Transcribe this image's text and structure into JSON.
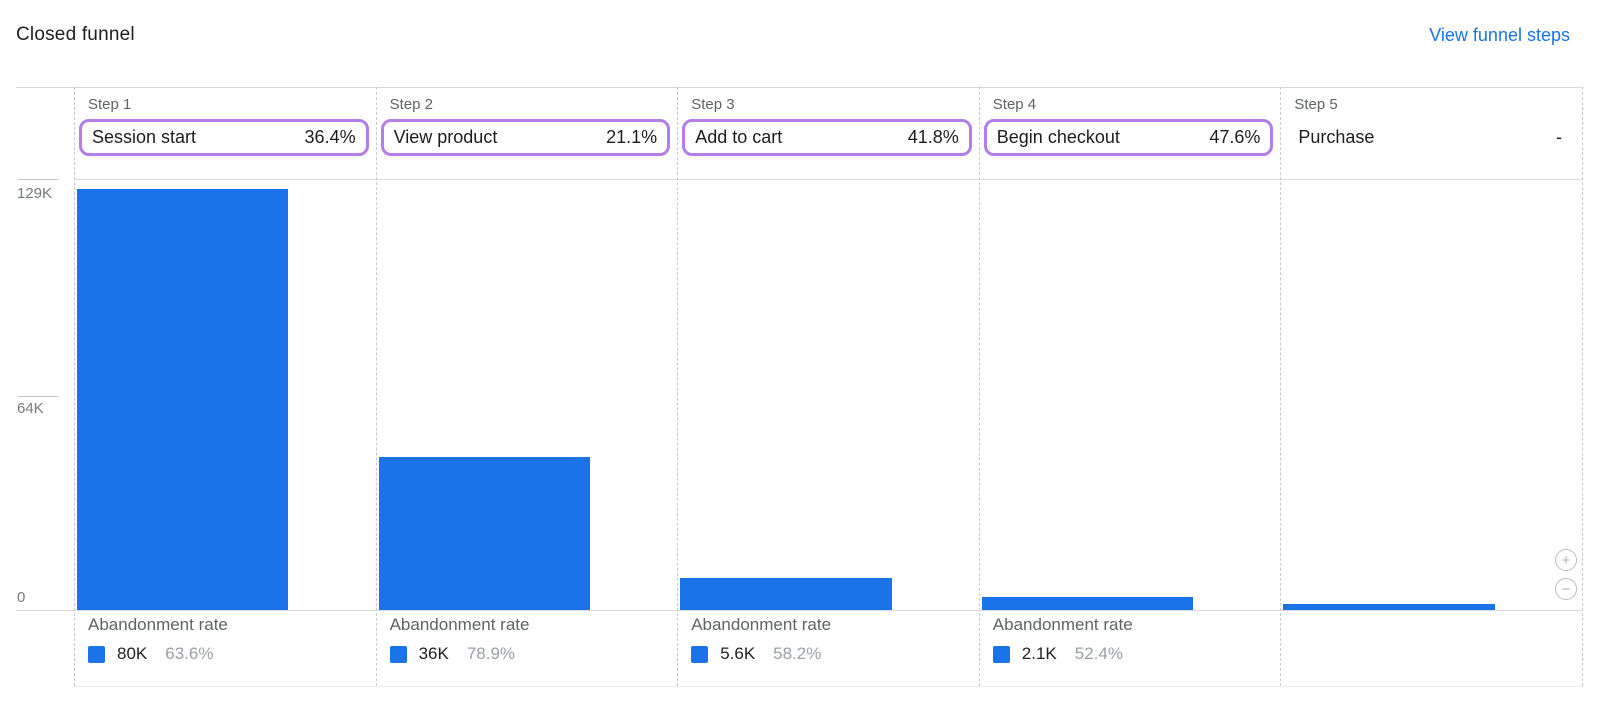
{
  "header": {
    "title": "Closed funnel",
    "view_link": "View funnel steps"
  },
  "chart_data": {
    "type": "bar",
    "title": "Closed funnel",
    "ylim": [
      0,
      129000
    ],
    "axis_max_k": 129,
    "grid": "horizontal-ticks-only",
    "bar_color": "#1a73e8",
    "highlight_color": "#b47de9",
    "yticks": [
      {
        "label": "129K",
        "value": 129000
      },
      {
        "label": "64K",
        "value": 64000
      },
      {
        "label": "0",
        "value": 0
      }
    ],
    "steps": [
      {
        "step_label": "Step 1",
        "name": "Session start",
        "completion_rate": "36.4%",
        "value_k": 125.9,
        "highlighted": true,
        "abandonment": {
          "label": "Abandonment rate",
          "count": "80K",
          "rate": "63.6%"
        }
      },
      {
        "step_label": "Step 2",
        "name": "View product",
        "completion_rate": "21.1%",
        "value_k": 45.8,
        "highlighted": true,
        "abandonment": {
          "label": "Abandonment rate",
          "count": "36K",
          "rate": "78.9%"
        }
      },
      {
        "step_label": "Step 3",
        "name": "Add to cart",
        "completion_rate": "41.8%",
        "value_k": 9.6,
        "highlighted": true,
        "abandonment": {
          "label": "Abandonment rate",
          "count": "5.6K",
          "rate": "58.2%"
        }
      },
      {
        "step_label": "Step 4",
        "name": "Begin checkout",
        "completion_rate": "47.6%",
        "value_k": 4.0,
        "highlighted": true,
        "abandonment": {
          "label": "Abandonment rate",
          "count": "2.1K",
          "rate": "52.4%"
        }
      },
      {
        "step_label": "Step 5",
        "name": "Purchase",
        "completion_rate": "-",
        "value_k": 1.9,
        "highlighted": false
      }
    ]
  },
  "zoom_controls": {
    "zoom_in": "+",
    "zoom_out": "−"
  }
}
